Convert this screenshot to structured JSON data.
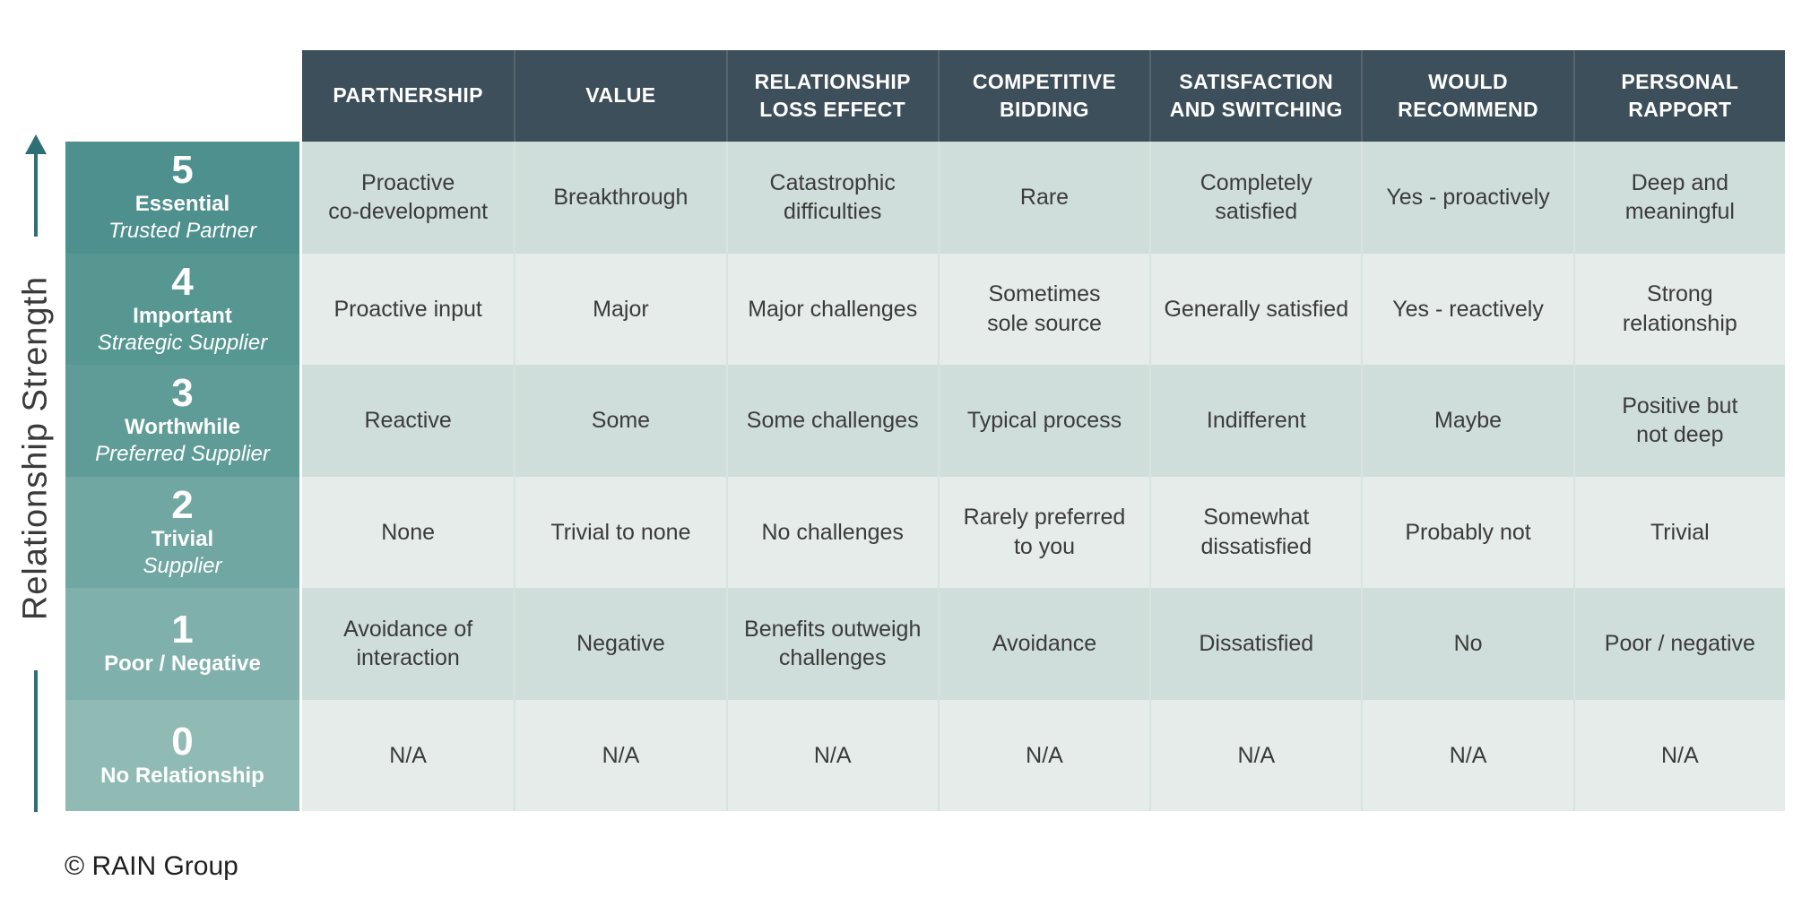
{
  "page": {
    "background": "#ffffff"
  },
  "axis": {
    "label": "Relationship Strength",
    "color": "#2e6f76"
  },
  "footer": {
    "copyright": "© RAIN Group"
  },
  "theme": {
    "header_bg": "#3d4f5a",
    "header_text": "#ffffff",
    "cell_text": "#3b3b3b",
    "row_dark_bg": "#cfdeda",
    "row_light_bg": "#e5ece9"
  },
  "chart_data": {
    "type": "table",
    "ylabel": "Relationship Strength",
    "columns": [
      "PARTNERSHIP",
      "VALUE",
      "RELATIONSHIP\nLOSS EFFECT",
      "COMPETITIVE\nBIDDING",
      "SATISFACTION\nAND SWITCHING",
      "WOULD\nRECOMMEND",
      "PERSONAL\nRAPPORT"
    ],
    "rows": [
      {
        "score": "5",
        "name": "Essential",
        "subtitle": "Trusted Partner",
        "label_bg": "#4d908d",
        "cell_bg": "#cfdeda",
        "cells": [
          "Proactive\nco-development",
          "Breakthrough",
          "Catastrophic\ndifficulties",
          "Rare",
          "Completely\nsatisfied",
          "Yes - proactively",
          "Deep and\nmeaningful"
        ]
      },
      {
        "score": "4",
        "name": "Important",
        "subtitle": "Strategic Supplier",
        "label_bg": "#569792",
        "cell_bg": "#e5ece9",
        "cells": [
          "Proactive input",
          "Major",
          "Major challenges",
          "Sometimes\nsole source",
          "Generally satisfied",
          "Yes - reactively",
          "Strong\nrelationship"
        ]
      },
      {
        "score": "3",
        "name": "Worthwhile",
        "subtitle": "Preferred Supplier",
        "label_bg": "#5f9c97",
        "cell_bg": "#cfdeda",
        "cells": [
          "Reactive",
          "Some",
          "Some challenges",
          "Typical process",
          "Indifferent",
          "Maybe",
          "Positive but\nnot deep"
        ]
      },
      {
        "score": "2",
        "name": "Trivial",
        "subtitle": "Supplier",
        "label_bg": "#70a7a2",
        "cell_bg": "#e5ece9",
        "cells": [
          "None",
          "Trivial to none",
          "No challenges",
          "Rarely preferred\nto you",
          "Somewhat\ndissatisfied",
          "Probably not",
          "Trivial"
        ]
      },
      {
        "score": "1",
        "name": "Poor / Negative",
        "subtitle": "",
        "label_bg": "#7fb0ab",
        "cell_bg": "#cfdeda",
        "cells": [
          "Avoidance of\ninteraction",
          "Negative",
          "Benefits outweigh\nchallenges",
          "Avoidance",
          "Dissatisfied",
          "No",
          "Poor / negative"
        ]
      },
      {
        "score": "0",
        "name": "No Relationship",
        "subtitle": "",
        "label_bg": "#90bab4",
        "cell_bg": "#e5ece9",
        "cells": [
          "N/A",
          "N/A",
          "N/A",
          "N/A",
          "N/A",
          "N/A",
          "N/A"
        ]
      }
    ]
  }
}
